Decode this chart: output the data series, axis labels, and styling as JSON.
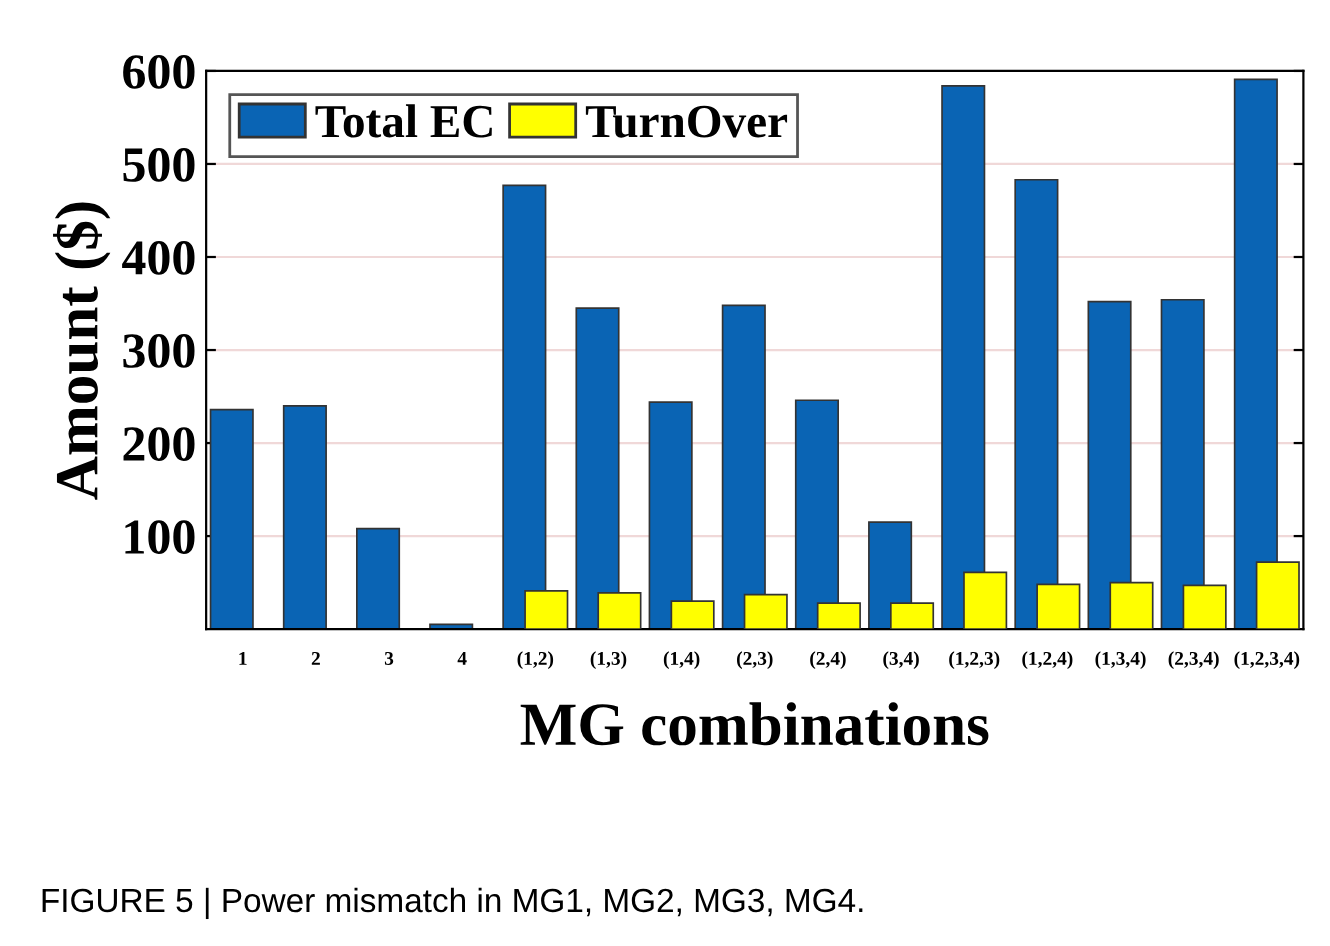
{
  "chart_data": {
    "type": "bar",
    "xlabel": "MG combinations",
    "ylabel": "Amount ($)",
    "categories": [
      "1",
      "2",
      "3",
      "4",
      "(1,2)",
      "(1,3)",
      "(1,4)",
      "(2,3)",
      "(2,4)",
      "(3,4)",
      "(1,2,3)",
      "(1,2,4)",
      "(1,3,4)",
      "(2,3,4)",
      "(1,2,3,4)"
    ],
    "series": [
      {
        "name": "Total EC",
        "color": "#0a64b4",
        "values": [
          236,
          240,
          108,
          5,
          477,
          345,
          244,
          348,
          246,
          115,
          584,
          483,
          352,
          354,
          591
        ]
      },
      {
        "name": "TurnOver",
        "color": "#ffff00",
        "values": [
          null,
          null,
          null,
          null,
          41,
          39,
          30,
          37,
          28,
          28,
          61,
          48,
          50,
          47,
          72
        ]
      }
    ],
    "ylim": [
      0,
      600
    ],
    "yticks": [
      100,
      200,
      300,
      400,
      500,
      600
    ],
    "grid": "y",
    "legend": "top left",
    "annotations": [
      "FIGURE 5 | Power mismatch in MG1, MG2, MG3, MG4."
    ]
  }
}
